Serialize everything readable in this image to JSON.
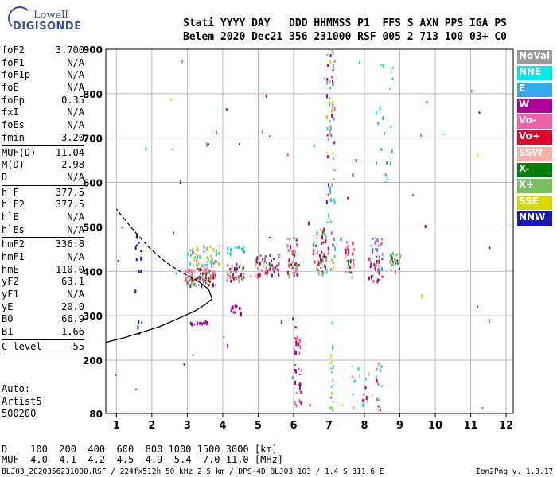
{
  "logo": {
    "line1": "Lowell",
    "line2": "DIGISONDE"
  },
  "header": {
    "row1": "Stati YYYY DAY   DDD HHMMSS P1  FFS S AXN PPS IGA PS",
    "row2": "Belem 2020 Dec21 356 231000 RSF 005 2 713 100 03+ C0"
  },
  "params": [
    {
      "k": "foF2",
      "v": "3.700"
    },
    {
      "k": "foF1",
      "v": "N/A"
    },
    {
      "k": "foF1p",
      "v": "N/A"
    },
    {
      "k": "foE",
      "v": "N/A"
    },
    {
      "k": "foEp",
      "v": "0.35"
    },
    {
      "k": "fxI",
      "v": "N/A"
    },
    {
      "k": "foEs",
      "v": "N/A"
    },
    {
      "k": "fmin",
      "v": "3.20",
      "sep": true
    },
    {
      "k": "MUF(D)",
      "v": "11.04"
    },
    {
      "k": "M(D)",
      "v": "2.98"
    },
    {
      "k": "D",
      "v": "N/A",
      "sep": true
    },
    {
      "k": "h`F",
      "v": "377.5"
    },
    {
      "k": "h`F2",
      "v": "377.5"
    },
    {
      "k": "h`E",
      "v": "N/A"
    },
    {
      "k": "h`Es",
      "v": "N/A",
      "sep": true
    },
    {
      "k": "hmF2",
      "v": "336.8"
    },
    {
      "k": "hmF1",
      "v": "N/A"
    },
    {
      "k": "hmE",
      "v": "110.0"
    },
    {
      "k": "yF2",
      "v": "63.1"
    },
    {
      "k": "yF1",
      "v": "N/A"
    },
    {
      "k": "yE",
      "v": "20.0"
    },
    {
      "k": "B0",
      "v": "66.9"
    },
    {
      "k": "B1",
      "v": "1.66",
      "sep": true
    },
    {
      "k": "C-level",
      "v": "55",
      "sep": true
    }
  ],
  "auto": [
    "Auto:",
    "Artist5",
    "500200"
  ],
  "footer": {
    "drow": "D    100  200  400  600  800 1000 1500 3000 [km]",
    "mufrow": "MUF  4.0  4.1  4.2  4.5  4.9  5.4  7.0 11.0 [MHz]",
    "file": "BLJ03_2020356231000.RSF / 224fx512h 50 kHz 2.5 km / DPS-4D BLJ03 103 / 1.4 S 311.6 E",
    "version": "Ion2Png v. 1.3.17"
  },
  "legend": [
    {
      "label": "NoVal",
      "color": "#999999"
    },
    {
      "label": "NNE",
      "color": "#00e8e8"
    },
    {
      "label": "E",
      "color": "#3aa8f0"
    },
    {
      "label": "W",
      "color": "#a8009a"
    },
    {
      "label": "Vo-",
      "color": "#f060a8"
    },
    {
      "label": "Vo+",
      "color": "#e0002a"
    },
    {
      "label": "SSW",
      "color": "#f8b0a8"
    },
    {
      "label": "X-",
      "color": "#00800a"
    },
    {
      "label": "X+",
      "color": "#78c060"
    },
    {
      "label": "SSE",
      "color": "#d8d800"
    },
    {
      "label": "NNW",
      "color": "#1818b8"
    }
  ],
  "chart_data": {
    "type": "scatter",
    "xlim": [
      0.7,
      12.2
    ],
    "ylim": [
      80,
      900
    ],
    "xticks": [
      1,
      2,
      3,
      4,
      5,
      6,
      7,
      8,
      9,
      10,
      11,
      12
    ],
    "yticks": [
      80,
      200,
      300,
      400,
      500,
      600,
      700,
      800,
      900
    ],
    "grid": true,
    "clusters": [
      {
        "x": [
          2.9,
          3.8
        ],
        "y": [
          370,
          410
        ],
        "n": 110,
        "colors": [
          "Vo+",
          "X-",
          "Vo-",
          "W",
          "X+",
          "SSW",
          "NoVal"
        ]
      },
      {
        "x": [
          3.0,
          3.9
        ],
        "y": [
          415,
          460
        ],
        "n": 50,
        "colors": [
          "E",
          "NNE",
          "X+",
          "SSE",
          "Vo-"
        ]
      },
      {
        "x": [
          4.1,
          4.6
        ],
        "y": [
          380,
          420
        ],
        "n": 45,
        "colors": [
          "Vo-",
          "Vo+",
          "X+",
          "X-",
          "W"
        ]
      },
      {
        "x": [
          4.1,
          4.6
        ],
        "y": [
          440,
          460
        ],
        "n": 14,
        "colors": [
          "E",
          "NNE"
        ]
      },
      {
        "x": [
          4.9,
          5.6
        ],
        "y": [
          390,
          440
        ],
        "n": 55,
        "colors": [
          "Vo-",
          "Vo+",
          "W",
          "X-",
          "SSW"
        ]
      },
      {
        "x": [
          5.8,
          6.1
        ],
        "y": [
          390,
          480
        ],
        "n": 45,
        "colors": [
          "Vo-",
          "Vo+",
          "W",
          "X+"
        ]
      },
      {
        "x": [
          6.5,
          6.9
        ],
        "y": [
          395,
          500
        ],
        "n": 55,
        "colors": [
          "Vo-",
          "Vo+",
          "X-",
          "X+",
          "W"
        ]
      },
      {
        "x": [
          7.4,
          7.7
        ],
        "y": [
          390,
          470
        ],
        "n": 35,
        "colors": [
          "Vo-",
          "X-",
          "Vo+",
          "SSW"
        ]
      },
      {
        "x": [
          8.1,
          8.5
        ],
        "y": [
          380,
          480
        ],
        "n": 45,
        "colors": [
          "Vo-",
          "Vo+",
          "W",
          "E"
        ]
      },
      {
        "x": [
          8.7,
          9.0
        ],
        "y": [
          400,
          450
        ],
        "n": 20,
        "colors": [
          "Vo-",
          "X-",
          "X+"
        ]
      },
      {
        "x": [
          4.2,
          4.5
        ],
        "y": [
          305,
          325
        ],
        "n": 12,
        "colors": [
          "W"
        ]
      },
      {
        "x": [
          3.0,
          3.6
        ],
        "y": [
          281,
          290
        ],
        "n": 14,
        "colors": [
          "W"
        ]
      },
      {
        "x": [
          6.9,
          7.15
        ],
        "y": [
          400,
          900
        ],
        "n": 80,
        "colors": [
          "E",
          "NNE",
          "Vo-",
          "W",
          "Vo+",
          "NoVal",
          "X+",
          "SSE"
        ]
      },
      {
        "x": [
          6.0,
          6.2
        ],
        "y": [
          80,
          280
        ],
        "n": 35,
        "colors": [
          "Vo+",
          "W",
          "Vo-"
        ]
      },
      {
        "x": [
          7.0,
          7.1
        ],
        "y": [
          80,
          250
        ],
        "n": 18,
        "colors": [
          "E",
          "NNE",
          "SSE"
        ]
      },
      {
        "x": [
          7.6,
          8.5
        ],
        "y": [
          80,
          200
        ],
        "n": 30,
        "colors": [
          "E",
          "NNE",
          "W",
          "Vo-",
          "SSW"
        ]
      },
      {
        "x": [
          8.3,
          8.8
        ],
        "y": [
          560,
          880
        ],
        "n": 20,
        "colors": [
          "E",
          "NNE"
        ]
      },
      {
        "x": [
          1.5,
          1.7
        ],
        "y": [
          250,
          490
        ],
        "n": 16,
        "colors": [
          "NNW"
        ]
      },
      {
        "x": [
          0.8,
          11.8
        ],
        "y": [
          90,
          880
        ],
        "n": 60,
        "colors": [
          "E",
          "NNE",
          "W",
          "Vo+",
          "Vo-",
          "X-",
          "SSE",
          "NNW"
        ]
      }
    ],
    "profile_solid": [
      [
        0.7,
        240
      ],
      [
        1.2,
        250
      ],
      [
        1.7,
        262
      ],
      [
        2.2,
        275
      ],
      [
        2.7,
        292
      ],
      [
        3.2,
        310
      ],
      [
        3.5,
        325
      ],
      [
        3.7,
        338
      ],
      [
        3.6,
        360
      ],
      [
        3.3,
        378
      ]
    ],
    "profile_dashed": [
      [
        3.3,
        378
      ],
      [
        2.9,
        395
      ],
      [
        2.4,
        420
      ],
      [
        1.9,
        455
      ],
      [
        1.4,
        500
      ],
      [
        1.0,
        540
      ]
    ]
  }
}
